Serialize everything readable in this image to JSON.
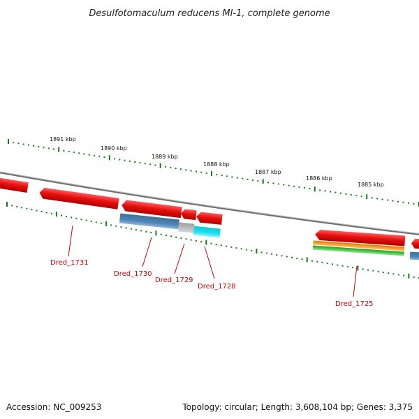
{
  "title": "Desulfotomaculum reducens MI-1, complete genome",
  "footer": {
    "accession": "Accession: NC_009253",
    "summary": "Topology: circular; Length: 3,608,104 bp; Genes: 3,375"
  },
  "colors": {
    "gene_red": "#e81010",
    "backbone": "#8a8a8a",
    "tick_green": "#1a7a1a",
    "label_red": "#d40000",
    "steel_blue": "#4f86b8",
    "cyan": "#22e0f0",
    "gray": "#b8b8b8",
    "orange": "#f39a1a",
    "green": "#3cc83c"
  },
  "scale_labels": [
    "1891 kbp",
    "1890 kbp",
    "1889 kbp",
    "1888 kbp",
    "1887 kbp",
    "1886 kbp",
    "1885 kbp"
  ],
  "gene_labels": [
    "Dred_1731",
    "Dred_1730",
    "Dred_1729",
    "Dred_1728",
    "Dred_1725"
  ]
}
